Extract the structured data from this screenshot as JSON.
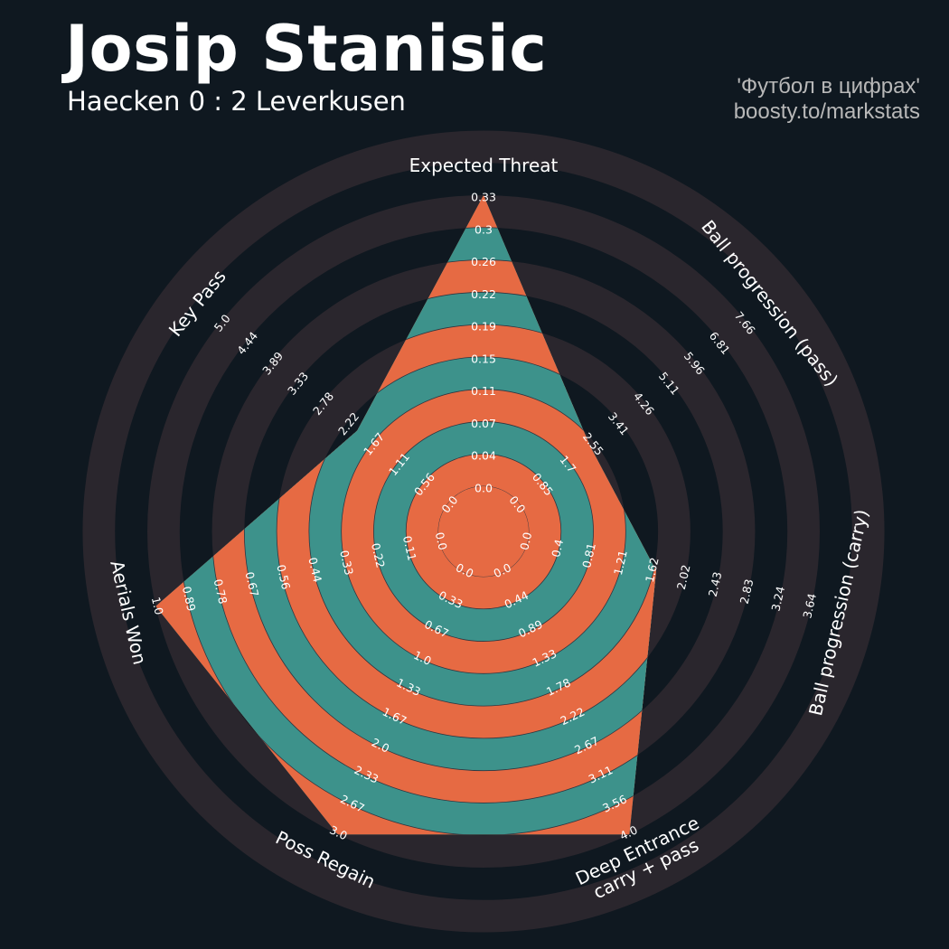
{
  "header": {
    "title": "Josip Stanisic",
    "subtitle": "Haecken 0 : 2 Leverkusen",
    "credit_line1": "'Футбол в цифрах'",
    "credit_line2": "boosty.to/markstats"
  },
  "colors": {
    "background": "#0f1820",
    "rings_outer": "#2a262d",
    "rings_inner": "#0f1820",
    "band_teal": "#3d928b",
    "band_orange": "#e66a43",
    "text": "#ffffff"
  },
  "chart_data": {
    "type": "radar",
    "params": [
      {
        "name": "Expected Threat",
        "value": 0.33,
        "ticks": [
          "0.0",
          "0.04",
          "0.07",
          "0.11",
          "0.15",
          "0.19",
          "0.22",
          "0.26",
          "0.3",
          "0.33"
        ]
      },
      {
        "name": "Ball progression (pass)",
        "value": 2.4,
        "ticks": [
          "0.0",
          "0.85",
          "1.7",
          "2.55",
          "3.41",
          "4.26",
          "5.11",
          "5.96",
          "6.81",
          "7.66"
        ]
      },
      {
        "name": "Ball progression (carry)",
        "value": 1.65,
        "ticks": [
          "0.0",
          "0.4",
          "0.81",
          "1.21",
          "1.62",
          "2.02",
          "2.43",
          "2.83",
          "3.24",
          "3.64"
        ]
      },
      {
        "name": "Deep Entrance\ncarry + pass",
        "value": 4.0,
        "ticks": [
          "0.0",
          "0.44",
          "0.89",
          "1.33",
          "1.78",
          "2.22",
          "2.67",
          "3.11",
          "3.56",
          "4.0"
        ]
      },
      {
        "name": "Poss Regain",
        "value": 3.0,
        "ticks": [
          "0.0",
          "0.33",
          "0.67",
          "1.0",
          "1.33",
          "1.67",
          "2.0",
          "2.33",
          "2.67",
          "3.0"
        ]
      },
      {
        "name": "Aerials Won",
        "value": 1.0,
        "ticks": [
          "0.0",
          "0.11",
          "0.22",
          "0.33",
          "0.44",
          "0.56",
          "0.67",
          "0.78",
          "0.89",
          "1.0"
        ]
      },
      {
        "name": "Key Pass",
        "value": 2.0,
        "ticks": [
          "0.0",
          "0.56",
          "1.11",
          "1.67",
          "2.22",
          "2.78",
          "3.33",
          "3.89",
          "4.44",
          "5.0"
        ]
      }
    ],
    "ranges": [
      [
        0,
        0.33
      ],
      [
        0,
        7.66
      ],
      [
        0,
        3.64
      ],
      [
        0,
        4.0
      ],
      [
        0,
        3.0
      ],
      [
        0,
        1.0
      ],
      [
        0,
        5.0
      ]
    ],
    "grid": "concentric alternating rings"
  }
}
